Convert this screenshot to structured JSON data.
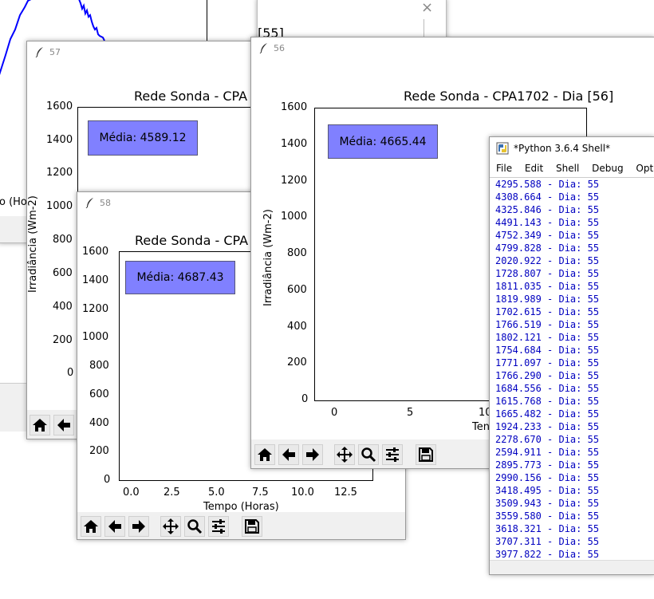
{
  "bg_window": {
    "close_glyph": "×",
    "partial_title": "[55]",
    "partial_xlabel": "o (Ho"
  },
  "fig57": {
    "title_number": "57",
    "plot_title": "Rede Sonda - CPA",
    "ylabel": "Irradiância (Wm-2)",
    "yticks": [
      "1600",
      "1400",
      "1200",
      "1000",
      "800",
      "600",
      "400",
      "200",
      "0"
    ],
    "mean_label": "Média: 4589.12"
  },
  "fig58": {
    "title_number": "58",
    "plot_title": "Rede Sonda - CPA",
    "xlabel": "Tempo (Horas)",
    "yticks": [
      "1600",
      "1400",
      "1200",
      "1000",
      "800",
      "600",
      "400",
      "200",
      "0"
    ],
    "xticks": [
      "0.0",
      "2.5",
      "5.0",
      "7.5",
      "10.0",
      "12.5"
    ],
    "mean_label": "Média: 4687.43"
  },
  "fig56": {
    "title_number": "56",
    "plot_title": "Rede Sonda - CPA1702 - Dia [56]",
    "ylabel": "Irradiância (Wm-2)",
    "xlabel_partial": "Ten",
    "yticks": [
      "1600",
      "1400",
      "1200",
      "1000",
      "800",
      "600",
      "400",
      "200",
      "0"
    ],
    "xticks": [
      "0",
      "5",
      "10"
    ],
    "mean_label": "Média: 4665.44"
  },
  "shell": {
    "title": "*Python 3.6.4 Shell*",
    "menu": [
      "File",
      "Edit",
      "Shell",
      "Debug",
      "Options"
    ],
    "lines": [
      "4295.588 - Dia: 55",
      "4308.664 - Dia: 55",
      "4325.846 - Dia: 55",
      "4491.143 - Dia: 55",
      "4752.349 - Dia: 55",
      "4799.828 - Dia: 55",
      "2020.922 - Dia: 55",
      "1728.807 - Dia: 55",
      "1811.035 - Dia: 55",
      "1819.989 - Dia: 55",
      "1702.615 - Dia: 55",
      "1766.519 - Dia: 55",
      "1802.121 - Dia: 55",
      "1754.684 - Dia: 55",
      "1771.097 - Dia: 55",
      "1766.290 - Dia: 55",
      "1684.556 - Dia: 55",
      "1615.768 - Dia: 55",
      "1665.482 - Dia: 55",
      "1924.233 - Dia: 55",
      "2278.670 - Dia: 55",
      "2594.911 - Dia: 55",
      "2895.773 - Dia: 55",
      "2990.156 - Dia: 55",
      "3418.495 - Dia: 55",
      "3509.943 - Dia: 55",
      "3559.580 - Dia: 55",
      "3618.321 - Dia: 55",
      "3707.311 - Dia: 55",
      "3977.822 - Dia: 55"
    ]
  },
  "icons": [
    "feather-icon",
    "home-icon",
    "back-icon",
    "forward-icon",
    "pan-icon",
    "zoom-icon",
    "configure-icon",
    "save-icon",
    "python-icon"
  ],
  "colors": {
    "mean_box": "#8080ff",
    "shell_text": "#0000c0",
    "plot_line": "#0000ff"
  }
}
